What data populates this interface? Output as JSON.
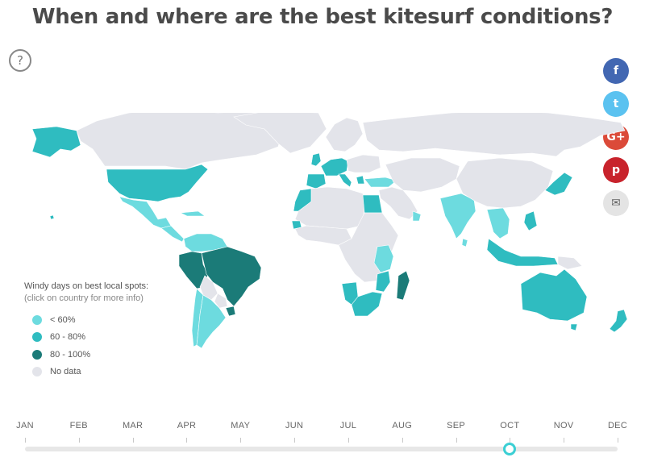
{
  "header": {
    "title": "When and where are the best kitesurf conditions?",
    "help_label": "?"
  },
  "share": [
    {
      "name": "facebook",
      "glyph": "f",
      "color": "#4267b2",
      "icon": "facebook-icon"
    },
    {
      "name": "twitter",
      "glyph": "t",
      "color": "#5bc2f0",
      "icon": "twitter-icon"
    },
    {
      "name": "google-plus",
      "glyph": "G+",
      "color": "#db4a39",
      "icon": "google-plus-icon"
    },
    {
      "name": "pinterest",
      "glyph": "p",
      "color": "#c8232c",
      "icon": "pinterest-icon"
    },
    {
      "name": "email",
      "glyph": "✉",
      "color": "#e4e4e4",
      "icon": "envelope-icon"
    }
  ],
  "legend": {
    "title": "Windy days on best local spots:",
    "subtitle": "(click on country for more info)",
    "items": [
      {
        "label": "< 60%",
        "color": "#6ddbdf"
      },
      {
        "label": "60 - 80%",
        "color": "#2fbcc0"
      },
      {
        "label": "80 - 100%",
        "color": "#1b7b78"
      },
      {
        "label": "No data",
        "color": "#e3e4ea"
      }
    ]
  },
  "timeline": {
    "months": [
      "JAN",
      "FEB",
      "MAR",
      "APR",
      "MAY",
      "JUN",
      "JUL",
      "AUG",
      "SEP",
      "OCT",
      "NOV",
      "DEC"
    ],
    "selected_index": 9,
    "accent": "#3ccfd4"
  },
  "map": {
    "colors": {
      "nodata": "#e3e4ea",
      "low": "#6ddbdf",
      "mid": "#2fbcc0",
      "high": "#1b7b78"
    },
    "regions": [
      {
        "name": "alaska",
        "level": "mid"
      },
      {
        "name": "canada",
        "level": "nodata"
      },
      {
        "name": "greenland",
        "level": "nodata"
      },
      {
        "name": "usa",
        "level": "mid"
      },
      {
        "name": "mexico",
        "level": "low"
      },
      {
        "name": "central-america",
        "level": "low"
      },
      {
        "name": "cuba",
        "level": "low"
      },
      {
        "name": "colombia-venezuela",
        "level": "low"
      },
      {
        "name": "peru",
        "level": "high"
      },
      {
        "name": "brazil",
        "level": "high"
      },
      {
        "name": "bolivia",
        "level": "nodata"
      },
      {
        "name": "paraguay",
        "level": "nodata"
      },
      {
        "name": "uruguay",
        "level": "high"
      },
      {
        "name": "chile",
        "level": "low"
      },
      {
        "name": "argentina",
        "level": "low"
      },
      {
        "name": "russia",
        "level": "nodata"
      },
      {
        "name": "scandinavia",
        "level": "nodata"
      },
      {
        "name": "uk",
        "level": "mid"
      },
      {
        "name": "western-europe",
        "level": "mid"
      },
      {
        "name": "iberia",
        "level": "mid"
      },
      {
        "name": "italy",
        "level": "mid"
      },
      {
        "name": "eastern-europe",
        "level": "nodata"
      },
      {
        "name": "turkey",
        "level": "low"
      },
      {
        "name": "greece",
        "level": "mid"
      },
      {
        "name": "morocco",
        "level": "mid"
      },
      {
        "name": "north-africa",
        "level": "nodata"
      },
      {
        "name": "egypt",
        "level": "mid"
      },
      {
        "name": "west-africa",
        "level": "nodata"
      },
      {
        "name": "senegal",
        "level": "mid"
      },
      {
        "name": "central-africa",
        "level": "nodata"
      },
      {
        "name": "kenya-tanzania",
        "level": "low"
      },
      {
        "name": "namibia",
        "level": "mid"
      },
      {
        "name": "south-africa",
        "level": "mid"
      },
      {
        "name": "mozambique",
        "level": "mid"
      },
      {
        "name": "madagascar",
        "level": "high"
      },
      {
        "name": "middle-east",
        "level": "nodata"
      },
      {
        "name": "oman",
        "level": "low"
      },
      {
        "name": "central-asia",
        "level": "nodata"
      },
      {
        "name": "india",
        "level": "low"
      },
      {
        "name": "sri-lanka",
        "level": "low"
      },
      {
        "name": "china",
        "level": "nodata"
      },
      {
        "name": "southeast-asia",
        "level": "low"
      },
      {
        "name": "philippines",
        "level": "mid"
      },
      {
        "name": "japan",
        "level": "mid"
      },
      {
        "name": "indonesia",
        "level": "mid"
      },
      {
        "name": "papua",
        "level": "nodata"
      },
      {
        "name": "australia",
        "level": "mid"
      },
      {
        "name": "tasmania",
        "level": "mid"
      },
      {
        "name": "new-zealand",
        "level": "mid"
      },
      {
        "name": "hawaii",
        "level": "mid"
      }
    ]
  }
}
